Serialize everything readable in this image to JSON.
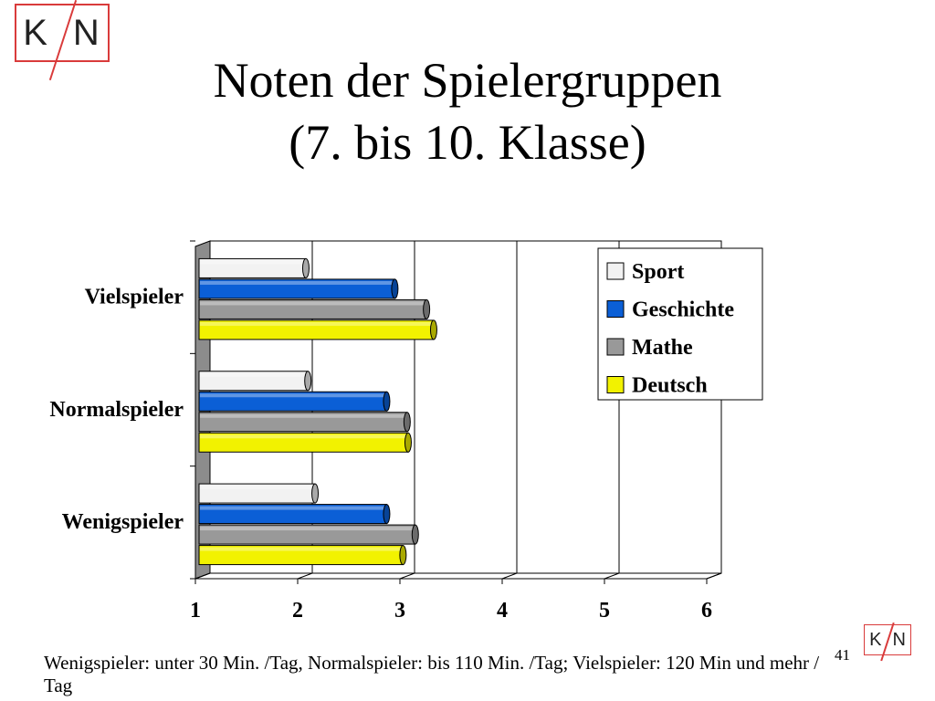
{
  "logo": {
    "text_left": "K",
    "text_right": "N"
  },
  "title": {
    "line1": "Noten der Spielergruppen",
    "line2": "(7. bis 10. Klasse)"
  },
  "chart_data": {
    "type": "bar",
    "orientation": "horizontal",
    "categories": [
      "Vielspieler",
      "Normalspieler",
      "Wenigspieler"
    ],
    "series": [
      {
        "name": "Sport",
        "color": "#f2f2f2",
        "values": [
          2.08,
          2.1,
          2.17
        ]
      },
      {
        "name": "Geschichte",
        "color": "#0b5fd6",
        "values": [
          2.95,
          2.87,
          2.87
        ]
      },
      {
        "name": "Mathe",
        "color": "#999999",
        "values": [
          3.26,
          3.07,
          3.15
        ]
      },
      {
        "name": "Deutsch",
        "color": "#f2f200",
        "values": [
          3.33,
          3.08,
          3.03
        ]
      }
    ],
    "xlim": [
      1,
      6
    ],
    "xticks": [
      "1",
      "2",
      "3",
      "4",
      "5",
      "6"
    ],
    "grid": true,
    "legend": "top-right",
    "bar_style": "3d-cylinder"
  },
  "footnote": "Wenigspieler: unter 30 Min. /Tag, Normalspieler: bis 110 Min. /Tag; Vielspieler: 120 Min und mehr / Tag",
  "page_number": "41"
}
